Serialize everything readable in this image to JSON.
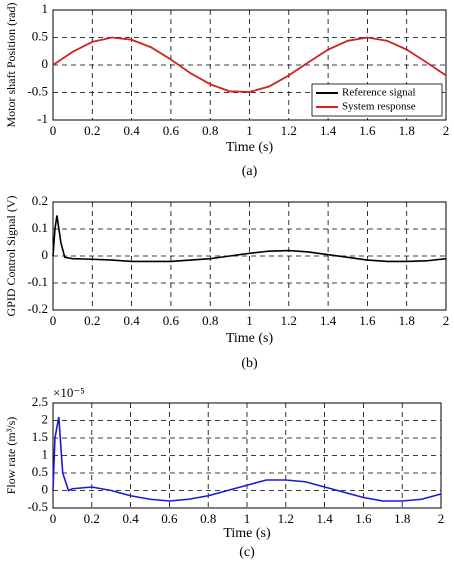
{
  "chart_data": [
    {
      "type": "line",
      "ylabel": "Motor shaft Position (rad)",
      "xlabel": "Time (s)",
      "caption": "(a)",
      "x": [
        0,
        0.1,
        0.2,
        0.3,
        0.4,
        0.5,
        0.6,
        0.7,
        0.8,
        0.9,
        1.0,
        1.1,
        1.2,
        1.3,
        1.4,
        1.5,
        1.6,
        1.7,
        1.8,
        1.9,
        2.0
      ],
      "xlim": [
        0,
        2
      ],
      "xticks": [
        0,
        0.2,
        0.4,
        0.6,
        0.8,
        1,
        1.2,
        1.4,
        1.6,
        1.8,
        2
      ],
      "ylim": [
        -1,
        1
      ],
      "yticks": [
        -1,
        -0.5,
        0,
        0.5,
        1
      ],
      "grid": true,
      "legend": "lower right",
      "series": [
        {
          "name": "Reference signal",
          "color": "#000000",
          "values": [
            0,
            0.24,
            0.42,
            0.5,
            0.46,
            0.32,
            0.1,
            -0.15,
            -0.35,
            -0.48,
            -0.49,
            -0.39,
            -0.19,
            0.05,
            0.28,
            0.44,
            0.5,
            0.44,
            0.28,
            0.05,
            -0.19
          ]
        },
        {
          "name": "System response",
          "color": "#e0201b",
          "values": [
            0,
            0.24,
            0.42,
            0.5,
            0.46,
            0.32,
            0.1,
            -0.15,
            -0.35,
            -0.48,
            -0.49,
            -0.39,
            -0.19,
            0.05,
            0.28,
            0.44,
            0.5,
            0.44,
            0.28,
            0.05,
            -0.19
          ]
        }
      ]
    },
    {
      "type": "line",
      "ylabel": "GPID Control Signal (V)",
      "xlabel": "Time (s)",
      "caption": "(b)",
      "x": [
        0,
        0.01,
        0.02,
        0.04,
        0.06,
        0.1,
        0.2,
        0.3,
        0.4,
        0.5,
        0.6,
        0.7,
        0.8,
        0.9,
        1.0,
        1.1,
        1.2,
        1.3,
        1.4,
        1.5,
        1.6,
        1.7,
        1.8,
        1.9,
        2.0
      ],
      "xlim": [
        0,
        2
      ],
      "xticks": [
        0,
        0.2,
        0.4,
        0.6,
        0.8,
        1,
        1.2,
        1.4,
        1.6,
        1.8,
        2
      ],
      "ylim": [
        -0.2,
        0.2
      ],
      "yticks": [
        -0.2,
        -0.1,
        0,
        0.1,
        0.2
      ],
      "grid": true,
      "series": [
        {
          "color": "#000000",
          "values": [
            0,
            0.1,
            0.15,
            0.05,
            -0.005,
            -0.01,
            -0.012,
            -0.015,
            -0.02,
            -0.02,
            -0.02,
            -0.015,
            -0.01,
            0,
            0.01,
            0.018,
            0.02,
            0.015,
            0.005,
            -0.005,
            -0.015,
            -0.02,
            -0.02,
            -0.018,
            -0.01
          ]
        }
      ]
    },
    {
      "type": "line",
      "ylabel": "Flow rate (m³/s)",
      "xlabel": "Time (s)",
      "caption": "(c)",
      "exponent_label": "×10⁻⁵",
      "x": [
        0,
        0.01,
        0.03,
        0.05,
        0.08,
        0.1,
        0.2,
        0.3,
        0.4,
        0.5,
        0.6,
        0.7,
        0.8,
        0.9,
        1.0,
        1.1,
        1.2,
        1.3,
        1.4,
        1.5,
        1.6,
        1.7,
        1.8,
        1.9,
        2.0
      ],
      "xlim": [
        0,
        2
      ],
      "xticks": [
        0,
        0.2,
        0.4,
        0.6,
        0.8,
        1,
        1.2,
        1.4,
        1.6,
        1.8,
        2
      ],
      "ylim": [
        -0.5,
        2.5
      ],
      "yticks": [
        -0.5,
        0,
        0.5,
        1,
        1.5,
        2,
        2.5
      ],
      "grid": true,
      "series": [
        {
          "color": "#1a1ad6",
          "values": [
            0,
            1.5,
            2.1,
            0.5,
            0,
            0.05,
            0.1,
            0,
            -0.15,
            -0.25,
            -0.3,
            -0.25,
            -0.15,
            0,
            0.15,
            0.3,
            0.3,
            0.25,
            0.1,
            -0.05,
            -0.2,
            -0.3,
            -0.3,
            -0.25,
            -0.1
          ]
        }
      ]
    }
  ]
}
